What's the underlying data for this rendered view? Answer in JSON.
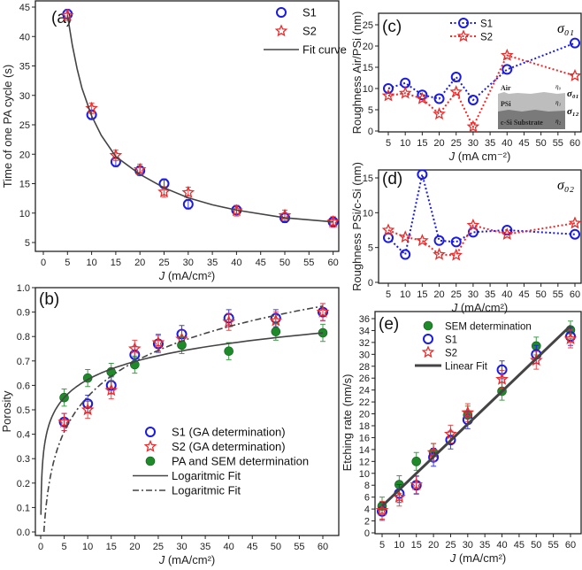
{
  "colors": {
    "s1": "#1a1ae6",
    "s2": "#ee2a2a",
    "green": "#1e8a2a",
    "fit": "#444444",
    "axis": "#222222"
  },
  "chart_data": [
    {
      "id": "a",
      "type": "scatter",
      "panel_label": "(a)",
      "ylabel": "Time of one PA cycle (s)",
      "xlabel": {
        "italic": "J",
        "rest": " (mA/cm²)"
      },
      "xlim": [
        -3,
        62
      ],
      "ylim": [
        3.5,
        46
      ],
      "xticks": [
        "0",
        "5",
        "10",
        "15",
        "20",
        "25",
        "30",
        "35",
        "40",
        "45",
        "50",
        "55",
        "60"
      ],
      "yticks": [
        "5",
        "10",
        "15",
        "20",
        "25",
        "30",
        "35",
        "40",
        "45"
      ],
      "legend": {
        "position": "top-right",
        "entries": [
          "S1",
          "S2",
          "Fit curve"
        ]
      },
      "series": [
        {
          "name": "S1",
          "marker": "circle",
          "err": 0.8,
          "x": [
            5,
            10,
            15,
            20,
            25,
            30,
            40,
            50,
            60
          ],
          "y": [
            43.8,
            26.7,
            18.7,
            17.2,
            15.0,
            11.5,
            10.5,
            9.2,
            8.5
          ]
        },
        {
          "name": "S2",
          "marker": "star",
          "err": 0.9,
          "x": [
            5,
            10,
            15,
            20,
            25,
            30,
            40,
            50,
            60
          ],
          "y": [
            43.6,
            27.8,
            19.8,
            17.4,
            13.6,
            13.5,
            10.4,
            9.6,
            8.5
          ]
        },
        {
          "name": "Fit curve",
          "marker": "line",
          "style": "solid",
          "x": [
            5,
            6,
            7,
            8,
            10,
            12,
            15,
            20,
            25,
            30,
            35,
            40,
            50,
            60
          ],
          "y": [
            43.6,
            38.5,
            34.5,
            31.2,
            26.5,
            23.2,
            19.6,
            16.6,
            14.3,
            12.6,
            11.4,
            10.5,
            9.2,
            8.5
          ]
        }
      ]
    },
    {
      "id": "b",
      "type": "scatter",
      "panel_label": "(b)",
      "ylabel": "Porosity",
      "xlabel": {
        "italic": "J",
        "rest": " (mA/cm²)"
      },
      "xlim": [
        -1,
        62
      ],
      "ylim": [
        -0.01,
        1.0
      ],
      "xticks": [
        "0",
        "5",
        "10",
        "15",
        "20",
        "25",
        "30",
        "35",
        "40",
        "45",
        "50",
        "55",
        "60"
      ],
      "yticks": [
        "0.0",
        "0.1",
        "0.2",
        "0.3",
        "0.4",
        "0.5",
        "0.6",
        "0.7",
        "0.8",
        "0.9",
        "1.0"
      ],
      "legend": {
        "position": "bottom-right",
        "entries": [
          "S1 (GA determination)",
          "S2 (GA determination)",
          "PA and SEM determination",
          "Logaritmic Fit",
          "Logaritmic Fit"
        ]
      },
      "series": [
        {
          "name": "S1 (GA determination)",
          "marker": "circle",
          "err": 0.035,
          "x": [
            5,
            10,
            15,
            20,
            25,
            30,
            40,
            50,
            60
          ],
          "y": [
            0.45,
            0.525,
            0.6,
            0.725,
            0.77,
            0.81,
            0.875,
            0.875,
            0.9
          ]
        },
        {
          "name": "S2 (GA determination)",
          "marker": "star",
          "err": 0.035,
          "x": [
            5,
            10,
            15,
            20,
            25,
            30,
            40,
            50,
            60
          ],
          "y": [
            0.45,
            0.5,
            0.58,
            0.75,
            0.775,
            0.79,
            0.86,
            0.865,
            0.9
          ]
        },
        {
          "name": "PA and SEM determination",
          "marker": "ball",
          "err": 0.035,
          "x": [
            5,
            10,
            15,
            20,
            30,
            40,
            50,
            60
          ],
          "y": [
            0.55,
            0.63,
            0.655,
            0.685,
            0.765,
            0.74,
            0.82,
            0.815
          ]
        },
        {
          "name": "Logaritmic Fit",
          "marker": "line",
          "style": "solid",
          "func": "log",
          "a": 0.378,
          "b": 0.1067,
          "xrange": [
            0.056,
            60
          ]
        },
        {
          "name": "Logaritmic Fit",
          "marker": "line",
          "style": "dashdot",
          "func": "log",
          "a": 0.077,
          "b": 0.207,
          "xrange": [
            0.69,
            60
          ]
        }
      ]
    },
    {
      "id": "c",
      "type": "line",
      "panel_label": "(c)",
      "ylabel": "Roughness Air/PSi (nm)",
      "xlabel": {
        "italic": "J",
        "rest": " (mA cm⁻²)"
      },
      "annotation": "σ₀₁",
      "xlim": [
        2,
        62
      ],
      "ylim": [
        0,
        27.7
      ],
      "xticks": [
        "5",
        "10",
        "15",
        "20",
        "25",
        "30",
        "35",
        "40",
        "45",
        "50",
        "55",
        "60"
      ],
      "yticks": [
        "0",
        "5",
        "10",
        "15",
        "20",
        "25"
      ],
      "legend": {
        "position": "top-center",
        "entries": [
          "S1",
          "S2"
        ]
      },
      "inset": {
        "layers": [
          "Air",
          "PSi",
          "c-Si Substrate"
        ],
        "indices": [
          "η₀",
          "η₁",
          "η₂"
        ],
        "interfaces": [
          "σ₀₁",
          "σ₁₂"
        ]
      },
      "series": [
        {
          "name": "S1",
          "marker": "circle",
          "style": "dotted",
          "x": [
            5,
            10,
            15,
            20,
            25,
            30,
            40,
            60
          ],
          "y": [
            10.0,
            11.3,
            8.5,
            7.6,
            12.7,
            7.3,
            14.5,
            20.7
          ]
        },
        {
          "name": "S2",
          "marker": "star",
          "style": "dotted",
          "x": [
            5,
            10,
            15,
            20,
            25,
            30,
            40,
            60
          ],
          "y": [
            8.3,
            8.9,
            7.6,
            4.0,
            9.2,
            1.0,
            17.8,
            13.0
          ]
        }
      ]
    },
    {
      "id": "d",
      "type": "line",
      "panel_label": "(d)",
      "ylabel": "Roughness PSi/c-Si (nm)",
      "xlabel": {
        "italic": "J",
        "rest": " (mA/cm²)"
      },
      "annotation": "σ₀₂",
      "xlim": [
        2,
        62
      ],
      "ylim": [
        0,
        16.5
      ],
      "xticks": [
        "5",
        "10",
        "15",
        "20",
        "25",
        "30",
        "35",
        "40",
        "45",
        "50",
        "55",
        "60"
      ],
      "yticks": [
        "0",
        "5",
        "10",
        "15"
      ],
      "series": [
        {
          "name": "S1",
          "marker": "circle",
          "style": "dotted",
          "x": [
            5,
            10,
            15,
            20,
            25,
            30,
            40,
            60
          ],
          "y": [
            6.4,
            4.0,
            15.5,
            6.0,
            5.8,
            7.2,
            7.5,
            6.9
          ]
        },
        {
          "name": "S2",
          "marker": "star",
          "style": "dotted",
          "x": [
            5,
            10,
            15,
            20,
            25,
            30,
            40,
            60
          ],
          "y": [
            7.5,
            6.5,
            6.0,
            4.0,
            3.9,
            8.2,
            6.9,
            8.5
          ]
        }
      ]
    },
    {
      "id": "e",
      "type": "scatter",
      "panel_label": "(e)",
      "ylabel": "Etching rate (nm/s)",
      "xlabel": {
        "italic": "J",
        "rest": " (mA/cm²)"
      },
      "xlim": [
        2,
        62
      ],
      "ylim": [
        0,
        36.5
      ],
      "xticks": [
        "5",
        "10",
        "15",
        "20",
        "25",
        "30",
        "35",
        "40",
        "45",
        "50",
        "55",
        "60"
      ],
      "yticks": [
        "0",
        "2",
        "4",
        "6",
        "8",
        "10",
        "12",
        "14",
        "16",
        "18",
        "20",
        "22",
        "24",
        "26",
        "28",
        "30",
        "32",
        "34",
        "36"
      ],
      "legend": {
        "position": "top-left",
        "entries": [
          "SEM determination",
          "S1",
          "S2",
          "Linear Fit"
        ]
      },
      "series": [
        {
          "name": "SEM determination",
          "marker": "ball",
          "err": 1.5,
          "x": [
            5,
            10,
            15,
            20,
            30,
            40,
            50,
            60
          ],
          "y": [
            4.5,
            8.1,
            12.0,
            13.5,
            19.8,
            23.8,
            31.4,
            34.1
          ]
        },
        {
          "name": "S1",
          "marker": "circle",
          "err": 1.5,
          "x": [
            5,
            10,
            15,
            20,
            25,
            30,
            40,
            50,
            60
          ],
          "y": [
            3.6,
            6.6,
            8.0,
            12.7,
            15.6,
            19.0,
            27.4,
            30.0,
            33.0
          ]
        },
        {
          "name": "S2",
          "marker": "star",
          "err": 1.5,
          "x": [
            5,
            10,
            15,
            20,
            25,
            30,
            40,
            50,
            60
          ],
          "y": [
            3.8,
            6.0,
            8.1,
            13.5,
            16.6,
            20.2,
            25.8,
            29.0,
            32.6
          ]
        },
        {
          "name": "Linear Fit",
          "marker": "line",
          "style": "thick",
          "x": [
            5,
            60
          ],
          "y": [
            4.5,
            34.8
          ]
        }
      ]
    }
  ]
}
